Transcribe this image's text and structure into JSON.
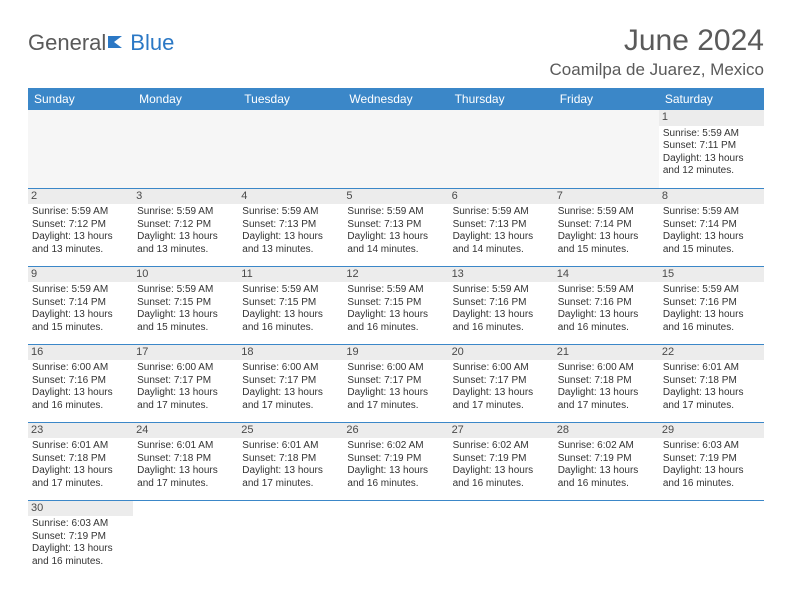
{
  "logo": {
    "part1": "General",
    "part2": "Blue"
  },
  "title": "June 2024",
  "location": "Coamilpa de Juarez, Mexico",
  "colors": {
    "header_bg": "#3b87c8",
    "header_text": "#ffffff",
    "rule": "#3b87c8",
    "daynum_bg": "#ececec",
    "text": "#333333",
    "logo_gray": "#5a5a5a",
    "logo_blue": "#2b78c5"
  },
  "weekdays": [
    "Sunday",
    "Monday",
    "Tuesday",
    "Wednesday",
    "Thursday",
    "Friday",
    "Saturday"
  ],
  "weeks": [
    [
      null,
      null,
      null,
      null,
      null,
      null,
      {
        "n": "1",
        "sr": "Sunrise: 5:59 AM",
        "ss": "Sunset: 7:11 PM",
        "dl": "Daylight: 13 hours and 12 minutes."
      }
    ],
    [
      {
        "n": "2",
        "sr": "Sunrise: 5:59 AM",
        "ss": "Sunset: 7:12 PM",
        "dl": "Daylight: 13 hours and 13 minutes."
      },
      {
        "n": "3",
        "sr": "Sunrise: 5:59 AM",
        "ss": "Sunset: 7:12 PM",
        "dl": "Daylight: 13 hours and 13 minutes."
      },
      {
        "n": "4",
        "sr": "Sunrise: 5:59 AM",
        "ss": "Sunset: 7:13 PM",
        "dl": "Daylight: 13 hours and 13 minutes."
      },
      {
        "n": "5",
        "sr": "Sunrise: 5:59 AM",
        "ss": "Sunset: 7:13 PM",
        "dl": "Daylight: 13 hours and 14 minutes."
      },
      {
        "n": "6",
        "sr": "Sunrise: 5:59 AM",
        "ss": "Sunset: 7:13 PM",
        "dl": "Daylight: 13 hours and 14 minutes."
      },
      {
        "n": "7",
        "sr": "Sunrise: 5:59 AM",
        "ss": "Sunset: 7:14 PM",
        "dl": "Daylight: 13 hours and 15 minutes."
      },
      {
        "n": "8",
        "sr": "Sunrise: 5:59 AM",
        "ss": "Sunset: 7:14 PM",
        "dl": "Daylight: 13 hours and 15 minutes."
      }
    ],
    [
      {
        "n": "9",
        "sr": "Sunrise: 5:59 AM",
        "ss": "Sunset: 7:14 PM",
        "dl": "Daylight: 13 hours and 15 minutes."
      },
      {
        "n": "10",
        "sr": "Sunrise: 5:59 AM",
        "ss": "Sunset: 7:15 PM",
        "dl": "Daylight: 13 hours and 15 minutes."
      },
      {
        "n": "11",
        "sr": "Sunrise: 5:59 AM",
        "ss": "Sunset: 7:15 PM",
        "dl": "Daylight: 13 hours and 16 minutes."
      },
      {
        "n": "12",
        "sr": "Sunrise: 5:59 AM",
        "ss": "Sunset: 7:15 PM",
        "dl": "Daylight: 13 hours and 16 minutes."
      },
      {
        "n": "13",
        "sr": "Sunrise: 5:59 AM",
        "ss": "Sunset: 7:16 PM",
        "dl": "Daylight: 13 hours and 16 minutes."
      },
      {
        "n": "14",
        "sr": "Sunrise: 5:59 AM",
        "ss": "Sunset: 7:16 PM",
        "dl": "Daylight: 13 hours and 16 minutes."
      },
      {
        "n": "15",
        "sr": "Sunrise: 5:59 AM",
        "ss": "Sunset: 7:16 PM",
        "dl": "Daylight: 13 hours and 16 minutes."
      }
    ],
    [
      {
        "n": "16",
        "sr": "Sunrise: 6:00 AM",
        "ss": "Sunset: 7:16 PM",
        "dl": "Daylight: 13 hours and 16 minutes."
      },
      {
        "n": "17",
        "sr": "Sunrise: 6:00 AM",
        "ss": "Sunset: 7:17 PM",
        "dl": "Daylight: 13 hours and 17 minutes."
      },
      {
        "n": "18",
        "sr": "Sunrise: 6:00 AM",
        "ss": "Sunset: 7:17 PM",
        "dl": "Daylight: 13 hours and 17 minutes."
      },
      {
        "n": "19",
        "sr": "Sunrise: 6:00 AM",
        "ss": "Sunset: 7:17 PM",
        "dl": "Daylight: 13 hours and 17 minutes."
      },
      {
        "n": "20",
        "sr": "Sunrise: 6:00 AM",
        "ss": "Sunset: 7:17 PM",
        "dl": "Daylight: 13 hours and 17 minutes."
      },
      {
        "n": "21",
        "sr": "Sunrise: 6:00 AM",
        "ss": "Sunset: 7:18 PM",
        "dl": "Daylight: 13 hours and 17 minutes."
      },
      {
        "n": "22",
        "sr": "Sunrise: 6:01 AM",
        "ss": "Sunset: 7:18 PM",
        "dl": "Daylight: 13 hours and 17 minutes."
      }
    ],
    [
      {
        "n": "23",
        "sr": "Sunrise: 6:01 AM",
        "ss": "Sunset: 7:18 PM",
        "dl": "Daylight: 13 hours and 17 minutes."
      },
      {
        "n": "24",
        "sr": "Sunrise: 6:01 AM",
        "ss": "Sunset: 7:18 PM",
        "dl": "Daylight: 13 hours and 17 minutes."
      },
      {
        "n": "25",
        "sr": "Sunrise: 6:01 AM",
        "ss": "Sunset: 7:18 PM",
        "dl": "Daylight: 13 hours and 17 minutes."
      },
      {
        "n": "26",
        "sr": "Sunrise: 6:02 AM",
        "ss": "Sunset: 7:19 PM",
        "dl": "Daylight: 13 hours and 16 minutes."
      },
      {
        "n": "27",
        "sr": "Sunrise: 6:02 AM",
        "ss": "Sunset: 7:19 PM",
        "dl": "Daylight: 13 hours and 16 minutes."
      },
      {
        "n": "28",
        "sr": "Sunrise: 6:02 AM",
        "ss": "Sunset: 7:19 PM",
        "dl": "Daylight: 13 hours and 16 minutes."
      },
      {
        "n": "29",
        "sr": "Sunrise: 6:03 AM",
        "ss": "Sunset: 7:19 PM",
        "dl": "Daylight: 13 hours and 16 minutes."
      }
    ],
    [
      {
        "n": "30",
        "sr": "Sunrise: 6:03 AM",
        "ss": "Sunset: 7:19 PM",
        "dl": "Daylight: 13 hours and 16 minutes."
      },
      null,
      null,
      null,
      null,
      null,
      null
    ]
  ]
}
